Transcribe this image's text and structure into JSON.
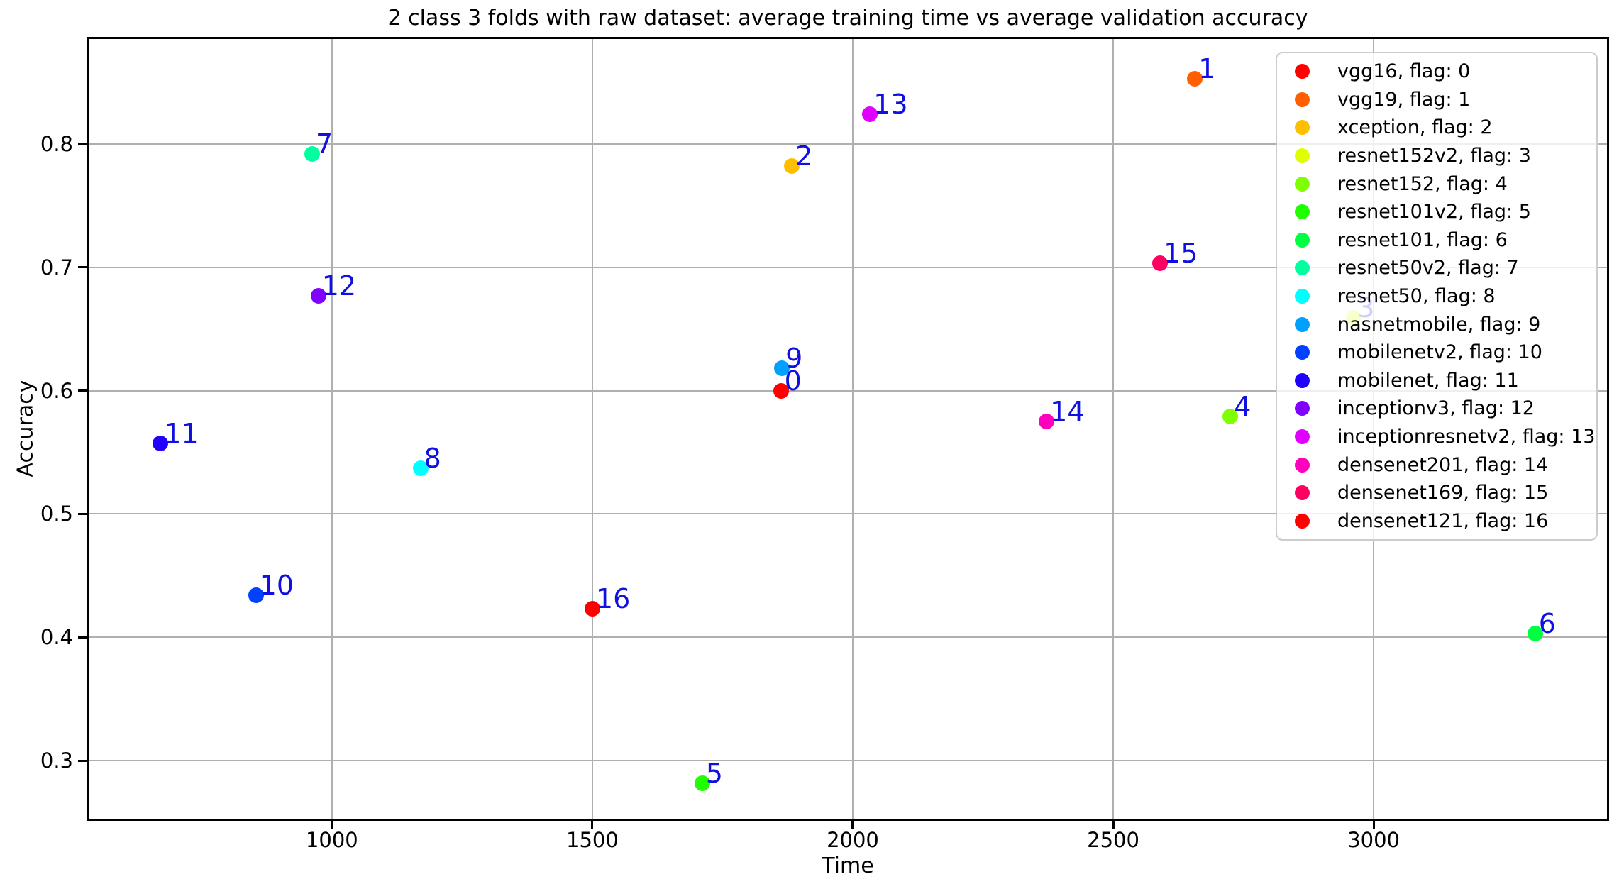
{
  "figure": {
    "title": "2 class 3 folds with raw dataset: average training time vs average validation accuracy",
    "xlabel": "Time",
    "ylabel": "Accuracy"
  },
  "chart_data": {
    "type": "scatter",
    "title": "2 class 3 folds with raw dataset: average training time vs average validation accuracy",
    "xlabel": "Time",
    "ylabel": "Accuracy",
    "xlim": [
      533,
      3448
    ],
    "ylim": [
      0.253,
      0.885
    ],
    "xticks": [
      1000,
      1500,
      2000,
      2500,
      3000
    ],
    "yticks": [
      0.3,
      0.4,
      0.5,
      0.6,
      0.7,
      0.8
    ],
    "grid": true,
    "grid_color": "#b0b0b0",
    "legend_position": "upper right",
    "legend_framealpha": 0.8,
    "annotation_color": "#1010e0",
    "points": [
      {
        "flag": 0,
        "model": "vgg16",
        "legend_label": "vgg16, flag: 0",
        "annotation": "0",
        "color": "#ff0000",
        "time": 1862,
        "accuracy": 0.6
      },
      {
        "flag": 1,
        "model": "vgg19",
        "legend_label": "vgg19, flag: 1",
        "annotation": "1",
        "color": "#ff5f00",
        "time": 2657,
        "accuracy": 0.853
      },
      {
        "flag": 2,
        "model": "xception",
        "legend_label": "xception, flag: 2",
        "annotation": "2",
        "color": "#ffbf00",
        "time": 1883,
        "accuracy": 0.782
      },
      {
        "flag": 3,
        "model": "resnet152v2",
        "legend_label": "resnet152v2, flag: 3",
        "annotation": "3",
        "color": "#dfff00",
        "time": 2962,
        "accuracy": 0.659,
        "occluded_by_legend": true
      },
      {
        "flag": 4,
        "model": "resnet152",
        "legend_label": "resnet152, flag: 4",
        "annotation": "4",
        "color": "#80ff00",
        "time": 2725,
        "accuracy": 0.579
      },
      {
        "flag": 5,
        "model": "resnet101v2",
        "legend_label": "resnet101v2, flag: 5",
        "annotation": "5",
        "color": "#20ff00",
        "time": 1711,
        "accuracy": 0.282
      },
      {
        "flag": 6,
        "model": "resnet101",
        "legend_label": "resnet101, flag: 6",
        "annotation": "6",
        "color": "#00ff40",
        "time": 3310,
        "accuracy": 0.403
      },
      {
        "flag": 7,
        "model": "resnet50v2",
        "legend_label": "resnet50v2, flag: 7",
        "annotation": "7",
        "color": "#00ff9f",
        "time": 962,
        "accuracy": 0.792
      },
      {
        "flag": 8,
        "model": "resnet50",
        "legend_label": "resnet50, flag: 8",
        "annotation": "8",
        "color": "#00ffff",
        "time": 1170,
        "accuracy": 0.537
      },
      {
        "flag": 9,
        "model": "nasnetmobile",
        "legend_label": "nasnetmobile, flag: 9",
        "annotation": "9",
        "color": "#00a0ff",
        "time": 1864,
        "accuracy": 0.618
      },
      {
        "flag": 10,
        "model": "mobilenetv2",
        "legend_label": "mobilenetv2, flag: 10",
        "annotation": "10",
        "color": "#0040ff",
        "time": 854,
        "accuracy": 0.434
      },
      {
        "flag": 11,
        "model": "mobilenet",
        "legend_label": "mobilenet, flag: 11",
        "annotation": "11",
        "color": "#2000ff",
        "time": 671,
        "accuracy": 0.557
      },
      {
        "flag": 12,
        "model": "inceptionv3",
        "legend_label": "inceptionv3, flag: 12",
        "annotation": "12",
        "color": "#8000ff",
        "time": 974,
        "accuracy": 0.677
      },
      {
        "flag": 13,
        "model": "inceptionresnetv2",
        "legend_label": "inceptionresnetv2, flag: 13",
        "annotation": "13",
        "color": "#df00ff",
        "time": 2033,
        "accuracy": 0.824
      },
      {
        "flag": 14,
        "model": "densenet201",
        "legend_label": "densenet201, flag: 14",
        "annotation": "14",
        "color": "#ff00bf",
        "time": 2372,
        "accuracy": 0.575
      },
      {
        "flag": 15,
        "model": "densenet169",
        "legend_label": "densenet169, flag: 15",
        "annotation": "15",
        "color": "#ff0060",
        "time": 2590,
        "accuracy": 0.703
      },
      {
        "flag": 16,
        "model": "densenet121",
        "legend_label": "densenet121, flag: 16",
        "annotation": "16",
        "color": "#ff0000",
        "time": 1500,
        "accuracy": 0.423
      }
    ]
  }
}
